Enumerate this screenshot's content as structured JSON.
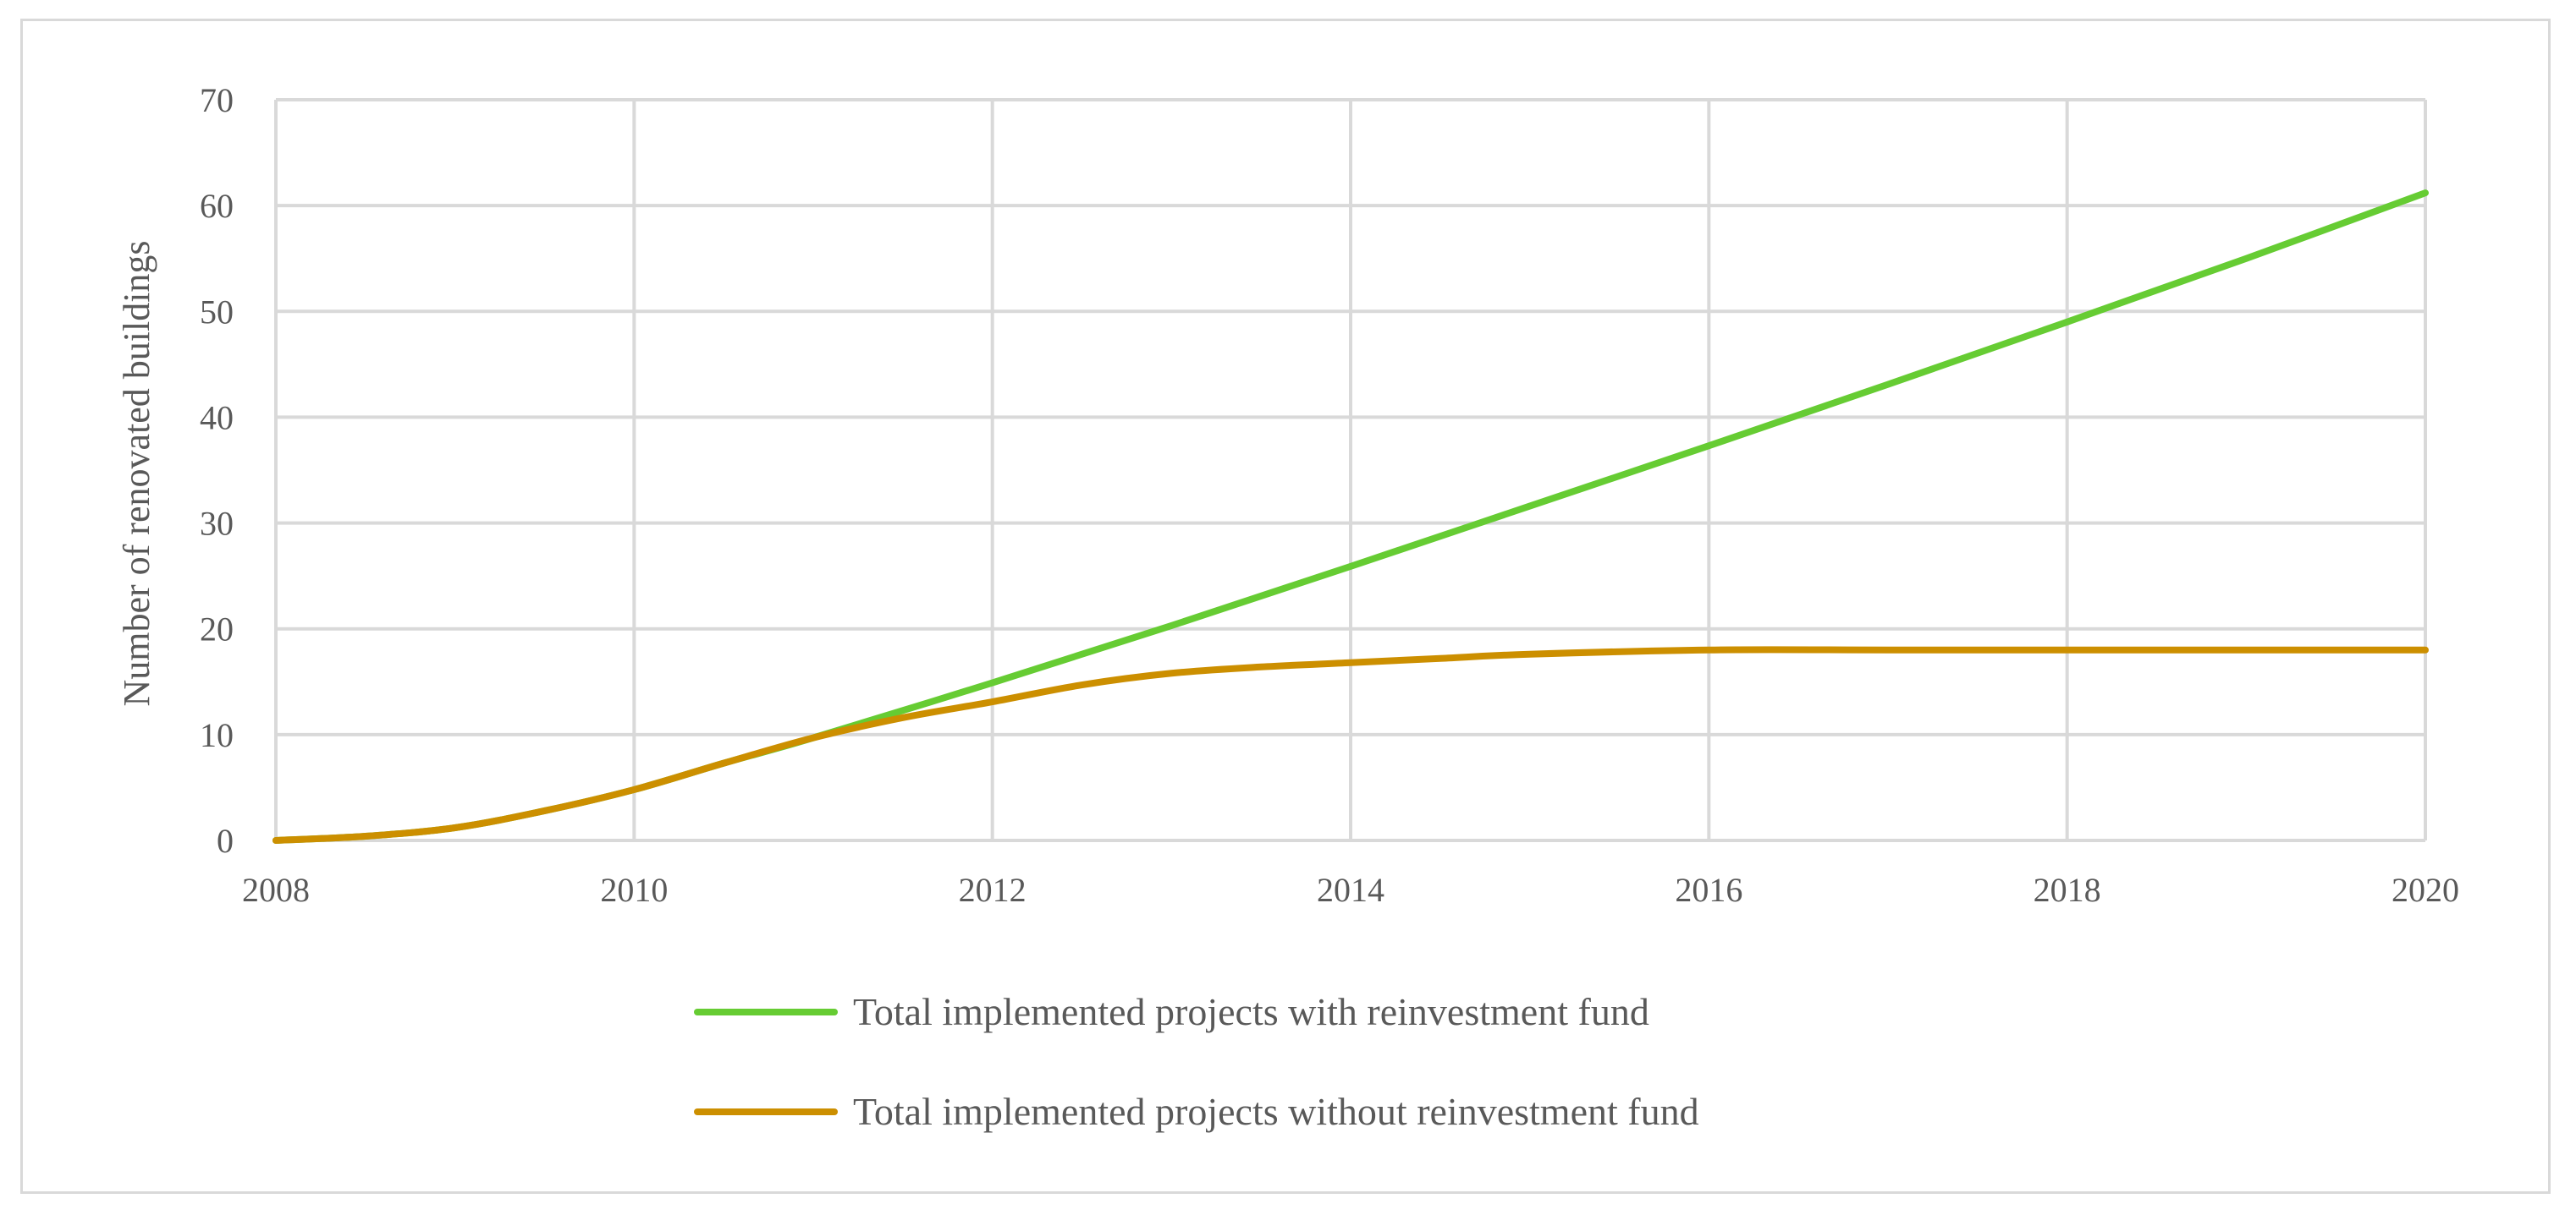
{
  "chart_data": {
    "type": "line",
    "title": "",
    "xlabel": "",
    "ylabel": "Number of renovated buildings",
    "xlim": [
      2008,
      2020
    ],
    "ylim": [
      0,
      70
    ],
    "x_ticks": [
      2008,
      2010,
      2012,
      2014,
      2016,
      2018,
      2020
    ],
    "y_ticks": [
      0,
      10,
      20,
      30,
      40,
      50,
      60,
      70
    ],
    "grid": true,
    "legend_position": "bottom",
    "series": [
      {
        "name": "Total implemented projects with reinvestment fund",
        "color": "#66cc33",
        "x": [
          2008,
          2008.5,
          2009,
          2009.5,
          2010,
          2010.5,
          2011,
          2012,
          2013,
          2014,
          2015,
          2016,
          2017,
          2018,
          2019,
          2020
        ],
        "y": [
          0,
          0.4,
          1.2,
          2.8,
          4.8,
          7.3,
          9.7,
          14.9,
          20.3,
          25.9,
          31.6,
          37.3,
          43.1,
          49.0,
          55.0,
          61.2
        ]
      },
      {
        "name": "Total implemented projects without reinvestment fund",
        "color": "#cc8f00",
        "x": [
          2008,
          2008.5,
          2009,
          2009.5,
          2010,
          2010.5,
          2011,
          2011.5,
          2012,
          2012.5,
          2013,
          2013.5,
          2014,
          2014.5,
          2015,
          2016,
          2017,
          2018,
          2019,
          2020
        ],
        "y": [
          0,
          0.4,
          1.2,
          2.8,
          4.8,
          7.3,
          9.7,
          11.6,
          13.1,
          14.7,
          15.8,
          16.4,
          16.8,
          17.2,
          17.6,
          18.0,
          18.0,
          18.0,
          18.0,
          18.0
        ]
      }
    ]
  }
}
